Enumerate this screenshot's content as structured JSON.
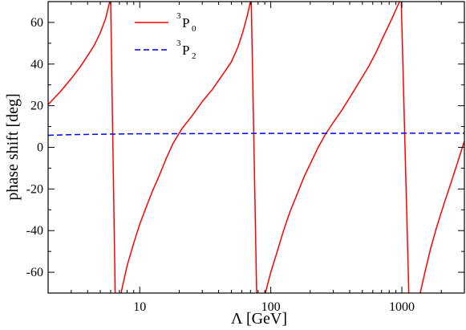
{
  "chart_data": {
    "type": "line",
    "title": "",
    "xlabel": "Λ  [GeV]",
    "ylabel": "phase shift  [deg]",
    "xscale": "log",
    "xlim": [
      2,
      3000
    ],
    "ylim": [
      -70,
      70
    ],
    "xticks": [
      10,
      100,
      1000
    ],
    "xtick_labels": [
      "10",
      "100",
      "1000"
    ],
    "yticks": [
      -60,
      -40,
      -20,
      0,
      20,
      40,
      60
    ],
    "ytick_labels": [
      "-60",
      "-40",
      "-20",
      "0",
      "20",
      "40",
      "60"
    ],
    "grid": false,
    "legend_position": "top-left",
    "series": [
      {
        "name": "3P0",
        "name_parts": {
          "sup": "3",
          "base": "P",
          "sub": "0"
        },
        "color": "#ff0000",
        "style": "solid",
        "segments": [
          {
            "x": [
              2.0,
              2.5,
              3.0,
              3.5,
              4.0,
              4.5,
              5.0,
              5.5,
              5.9
            ],
            "y": [
              20.5,
              27,
              33,
              38.5,
              44,
              49,
              55,
              62,
              70
            ]
          },
          {
            "x": [
              6.0,
              6.5
            ],
            "y": [
              70,
              -70
            ]
          },
          {
            "x": [
              7.2,
              8.0,
              9.0,
              10.0,
              11.0,
              12.5,
              14.0,
              16.0,
              18.0,
              21.0,
              25.0,
              30.0,
              36.0,
              43.0,
              50.0,
              56.0,
              61.0,
              66.0,
              70.0
            ],
            "y": [
              -70,
              -57,
              -46,
              -37,
              -30,
              -21,
              -14,
              -5,
              2,
              9,
              15,
              22,
              28,
              35,
              41,
              48,
              55,
              63,
              70
            ]
          },
          {
            "x": [
              71.0,
              78.0
            ],
            "y": [
              70,
              -70
            ]
          },
          {
            "x": [
              91.0,
              100.0,
              112.0,
              125.0,
              140.0,
              160.0,
              180.0,
              200.0,
              230.0,
              260.0,
              300.0,
              350.0,
              410.0,
              480.0,
              560.0,
              640.0,
              720.0,
              800.0,
              870.0,
              960.0
            ],
            "y": [
              -70,
              -60,
              -50,
              -40,
              -31,
              -22,
              -14,
              -8,
              0,
              6,
              12,
              18,
              25,
              32,
              39,
              46,
              53,
              59,
              64,
              70
            ]
          },
          {
            "x": [
              990.0,
              1130.0
            ],
            "y": [
              70,
              -70
            ]
          },
          {
            "x": [
              1380.0,
              1500.0,
              1650.0,
              1850.0,
              2100.0,
              2400.0,
              2700.0,
              3000.0
            ],
            "y": [
              -70,
              -60,
              -49,
              -38,
              -27,
              -16,
              -6,
              3
            ]
          }
        ]
      },
      {
        "name": "3P2",
        "name_parts": {
          "sup": "3",
          "base": "P",
          "sub": "2"
        },
        "color": "#0000ff",
        "style": "dashed",
        "segments": [
          {
            "x": [
              2.0,
              3.0,
              5.0,
              10.0,
              30.0,
              100.0,
              300.0,
              1000.0,
              3000.0
            ],
            "y": [
              5.8,
              6.1,
              6.3,
              6.5,
              6.6,
              6.7,
              6.7,
              6.8,
              6.8
            ]
          }
        ]
      }
    ]
  }
}
